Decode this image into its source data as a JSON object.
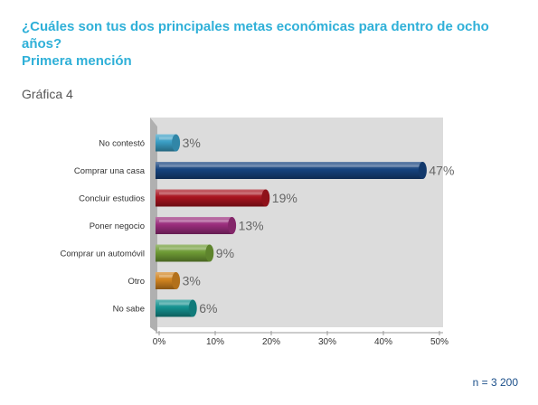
{
  "header": {
    "title_line1": "¿Cuáles son tus dos principales metas económicas para dentro de ocho años?",
    "title_line2": "Primera mención",
    "figure_label": "Gráfica 4",
    "sample_size": "n = 3 200"
  },
  "colors": {
    "title": "#2fb0d8",
    "panel": "#dcdcdc",
    "wall": "#b0b0b0"
  },
  "chart_data": {
    "type": "bar",
    "orientation": "horizontal",
    "categories": [
      "No contestó",
      "Comprar una casa",
      "Concluir estudios",
      "Poner negocio",
      "Comprar un automóvil",
      "Otro",
      "No sabe"
    ],
    "values": [
      3,
      47,
      19,
      13,
      9,
      3,
      6
    ],
    "value_labels": [
      "3%",
      "47%",
      "19%",
      "13%",
      "9%",
      "3%",
      "6%"
    ],
    "bar_colors": [
      "#3a9ec4",
      "#15427e",
      "#a8141f",
      "#9a2d7c",
      "#6e9b35",
      "#d18420",
      "#14918f"
    ],
    "xlim": [
      0,
      50
    ],
    "ticks": [
      0,
      10,
      20,
      30,
      40,
      50
    ],
    "tick_labels": [
      "0%",
      "10%",
      "20%",
      "30%",
      "40%",
      "50%"
    ],
    "grid": false,
    "legend": "none"
  }
}
